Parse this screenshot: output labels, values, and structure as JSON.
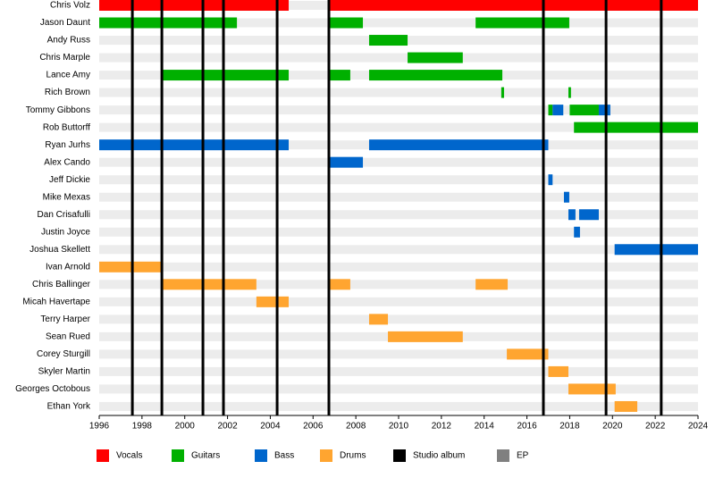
{
  "chart_data": {
    "type": "timeline",
    "categories": [
      "Chris Volz",
      "Jason Daunt",
      "Andy Russ",
      "Chris Marple",
      "Lance Amy",
      "Rich Brown",
      "Tommy Gibbons",
      "Rob Buttorff",
      "Ryan Jurhs",
      "Alex Cando",
      "Jeff Dickie",
      "Mike Mexas",
      "Dan Crisafulli",
      "Justin Joyce",
      "Joshua Skellett",
      "Ivan Arnold",
      "Chris Ballinger",
      "Micah Havertape",
      "Terry Harper",
      "Sean Rued",
      "Corey Sturgill",
      "Skyler Martin",
      "Georges Octobous",
      "Ethan York"
    ],
    "series": [
      {
        "name": "Vocals",
        "color": "#ff0000",
        "values": [
          [
            [
              1996,
              2004.86
            ],
            [
              2006.74,
              2024
            ]
          ],
          [],
          [],
          [],
          [],
          [],
          [],
          [],
          [],
          [],
          [],
          [],
          [],
          [],
          [],
          [],
          [],
          [],
          [],
          [],
          [],
          [],
          [],
          []
        ]
      },
      {
        "name": "Guitars",
        "color": "#00b000",
        "values": [
          [],
          [
            [
              1996,
              2002.44
            ],
            [
              2006.74,
              2008.33
            ],
            [
              2013.6,
              2017.98
            ]
          ],
          [
            [
              2008.62,
              2010.42
            ]
          ],
          [
            [
              2010.42,
              2013.0
            ]
          ],
          [
            [
              1998.97,
              2004.86
            ],
            [
              2006.74,
              2007.74
            ],
            [
              2008.62,
              2014.85
            ]
          ],
          [
            [
              2014.8,
              2014.93
            ],
            [
              2017.94,
              2018.06
            ]
          ],
          [
            [
              2017.0,
              2017.2
            ],
            [
              2018.0,
              2019.36
            ]
          ],
          [
            [
              2018.2,
              2024
            ]
          ],
          [],
          [],
          [],
          [],
          [],
          [],
          [],
          [],
          [],
          [],
          [],
          [],
          [],
          [],
          [],
          []
        ]
      },
      {
        "name": "Bass",
        "color": "#0066cc",
        "values": [
          [],
          [],
          [],
          [],
          [],
          [],
          [
            [
              2017.2,
              2017.7
            ],
            [
              2019.36,
              2019.9
            ]
          ],
          [],
          [
            [
              1996,
              2004.86
            ],
            [
              2008.62,
              2017.0
            ]
          ],
          [
            [
              2006.74,
              2008.33
            ]
          ],
          [
            [
              2017.0,
              2017.2
            ]
          ],
          [
            [
              2017.73,
              2017.98
            ]
          ],
          [
            [
              2017.94,
              2018.27
            ],
            [
              2018.44,
              2019.36
            ]
          ],
          [
            [
              2018.2,
              2018.48
            ]
          ],
          [
            [
              2020.1,
              2024
            ]
          ],
          [],
          [],
          [],
          [],
          [],
          [],
          [],
          [],
          []
        ]
      },
      {
        "name": "Drums",
        "color": "#ffa530",
        "values": [
          [],
          [],
          [],
          [],
          [],
          [],
          [],
          [],
          [],
          [],
          [],
          [],
          [],
          [],
          [],
          [
            [
              1996,
              1998.93
            ]
          ],
          [
            [
              1998.97,
              2003.35
            ],
            [
              2006.74,
              2007.74
            ],
            [
              2013.6,
              2015.1
            ]
          ],
          [
            [
              2003.35,
              2004.86
            ]
          ],
          [
            [
              2008.62,
              2009.5
            ]
          ],
          [
            [
              2009.5,
              2013.0
            ]
          ],
          [
            [
              2015.06,
              2017.0
            ]
          ],
          [
            [
              2017.0,
              2017.94
            ]
          ],
          [
            [
              2017.94,
              2020.15
            ]
          ],
          [
            [
              2020.1,
              2021.16
            ]
          ]
        ]
      }
    ],
    "events": [
      {
        "name": "Studio album",
        "color": "#000000",
        "values": [
          1997.55,
          1998.93,
          2000.85,
          2001.81,
          2004.32,
          2006.74,
          2016.77,
          2019.7,
          2022.28
        ]
      },
      {
        "name": "EP",
        "color": "#808080",
        "values": []
      }
    ],
    "xlim": [
      1996,
      2024
    ],
    "xticks": [
      1996,
      1998,
      2000,
      2002,
      2004,
      2006,
      2008,
      2010,
      2012,
      2014,
      2016,
      2018,
      2020,
      2022,
      2024
    ]
  }
}
